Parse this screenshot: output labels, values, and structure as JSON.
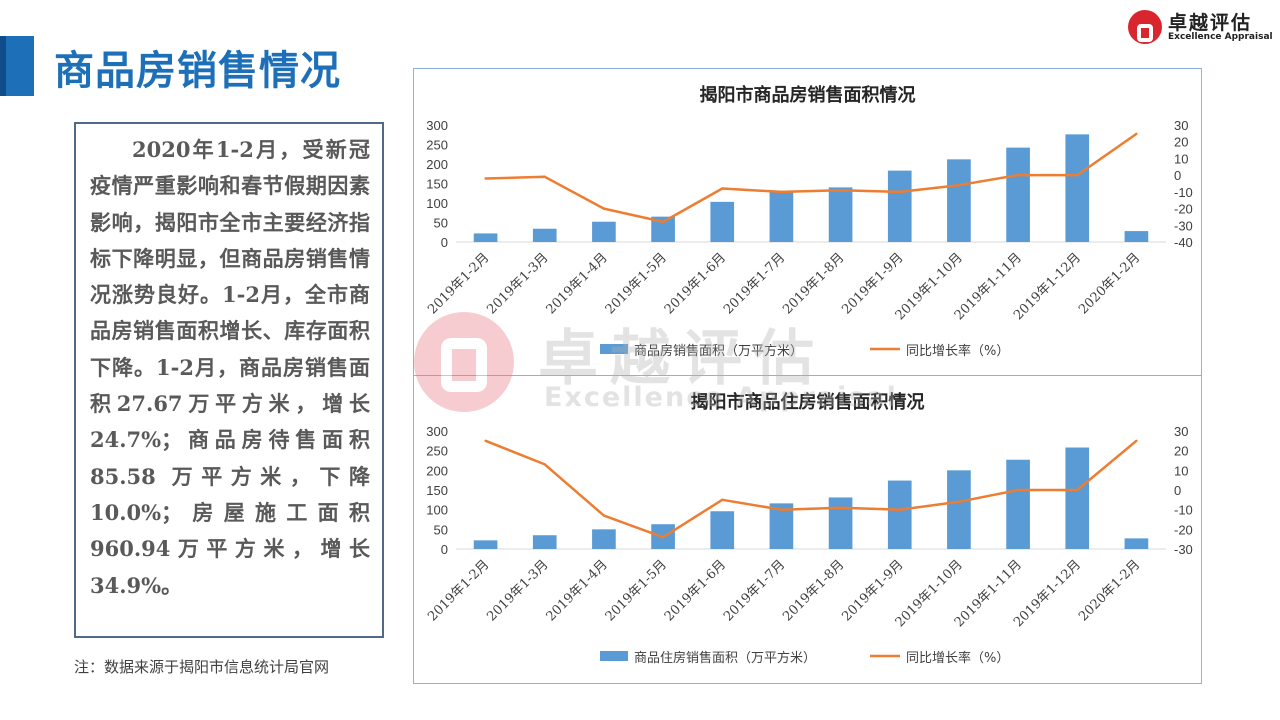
{
  "header": {
    "title": "商品房销售情况",
    "logo_cn": "卓越评估",
    "logo_en": "Excellence Appraisal"
  },
  "summary": {
    "paragraph": "2020年1-2月，受新冠疫情严重影响和春节假期因素影响，揭阳市全市主要经济指标下降明显，但商品房销售情况涨势良好。1-2月，全市商品房销售面积增长、库存面积下降。1-2月，商品房销售面积27.67万平方米，增长24.7%；商品房待售面积85.58 万平方米，下降10.0%；房屋施工面积960.94万平方米，增长34.9%。"
  },
  "footnote": "注：数据来源于揭阳市信息统计局官网",
  "watermark": {
    "cn": "卓越评估",
    "en": "Excellence Appraisal"
  },
  "colors": {
    "bar": "#5b9bd5",
    "line": "#ed7d31",
    "title_accent": "#1d6fb8",
    "logo_red": "#d9262e"
  },
  "chart_data": [
    {
      "type": "bar+line",
      "title": "揭阳市商品房销售面积情况",
      "categories": [
        "2019年1-2月",
        "2019年1-3月",
        "2019年1-4月",
        "2019年1-5月",
        "2019年1-6月",
        "2019年1-7月",
        "2019年1-8月",
        "2019年1-9月",
        "2019年1-10月",
        "2019年1-11月",
        "2019年1-12月",
        "2020年1-2月"
      ],
      "series": [
        {
          "name": "商品房销售面积（万平方米）",
          "type": "bar",
          "axis": "left",
          "values": [
            22,
            34,
            52,
            65,
            103,
            128,
            140,
            183,
            212,
            242,
            276,
            28
          ]
        },
        {
          "name": "同比增长率（%）",
          "type": "line",
          "axis": "right",
          "values": [
            -2,
            -1,
            -20,
            -28,
            -8,
            -10,
            -9,
            -10,
            -6,
            0,
            0,
            24.7
          ]
        }
      ],
      "ylim_left": [
        0,
        300
      ],
      "yticks_left": [
        0,
        50,
        100,
        150,
        200,
        250,
        300
      ],
      "ylim_right": [
        -40,
        30
      ],
      "yticks_right": [
        -40,
        -30,
        -20,
        -10,
        0,
        10,
        20,
        30
      ],
      "legend_position": "bottom"
    },
    {
      "type": "bar+line",
      "title": "揭阳市商品住房销售面积情况",
      "categories": [
        "2019年1-2月",
        "2019年1-3月",
        "2019年1-4月",
        "2019年1-5月",
        "2019年1-6月",
        "2019年1-7月",
        "2019年1-8月",
        "2019年1-9月",
        "2019年1-10月",
        "2019年1-11月",
        "2019年1-12月",
        "2020年1-2月"
      ],
      "series": [
        {
          "name": "商品住房销售面积（万平方米）",
          "type": "bar",
          "axis": "left",
          "values": [
            22,
            35,
            50,
            63,
            96,
            116,
            131,
            174,
            200,
            227,
            258,
            27
          ]
        },
        {
          "name": "同比增长率（%）",
          "type": "line",
          "axis": "right",
          "values": [
            25,
            13,
            -13,
            -24,
            -5,
            -10,
            -9,
            -10,
            -6,
            0,
            0,
            25
          ]
        }
      ],
      "ylim_left": [
        0,
        300
      ],
      "yticks_left": [
        0,
        50,
        100,
        150,
        200,
        250,
        300
      ],
      "ylim_right": [
        -30,
        30
      ],
      "yticks_right": [
        -30,
        -20,
        -10,
        0,
        10,
        20,
        30
      ],
      "legend_position": "bottom"
    }
  ]
}
